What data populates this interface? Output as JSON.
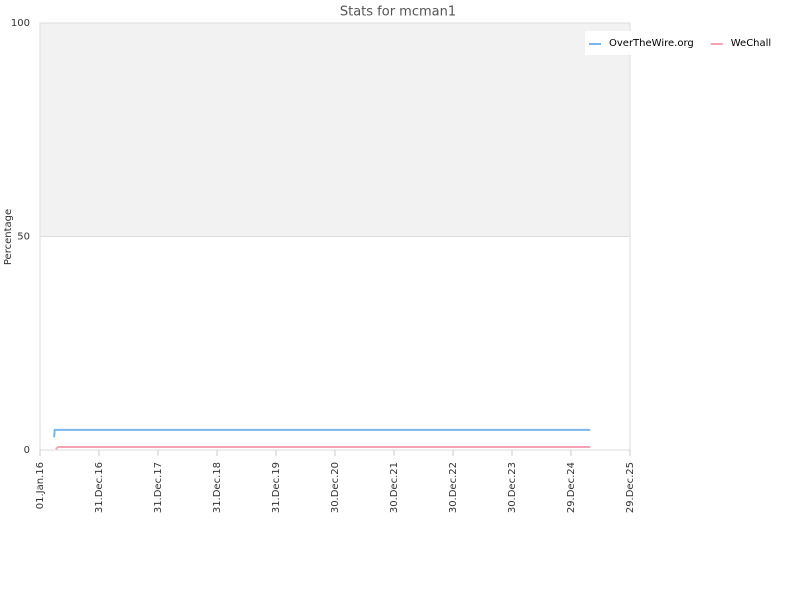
{
  "chart_data": {
    "type": "line",
    "title": "Stats for mcman1",
    "y_label": "Percentage",
    "series": [
      {
        "name": "OverTheWire.org",
        "color": "#7cb5ec",
        "x": [
          "2016-03-28",
          "2016-04-01",
          "2025-04-27"
        ],
        "values": [
          3,
          4.7,
          4.7
        ]
      },
      {
        "name": "WeChall",
        "color": "#f7a1b5",
        "x": [
          "2016-04-08",
          "2016-04-21",
          "2025-04-27"
        ],
        "values": [
          0.2,
          0.7,
          0.7
        ]
      }
    ],
    "xlim": [
      "2016-01-01",
      "2025-12-29"
    ],
    "xticks": [
      {
        "value": "2016-01-01",
        "label": "01.Jan.16"
      },
      {
        "value": "2016-12-31",
        "label": "31.Dec.16"
      },
      {
        "value": "2017-12-31",
        "label": "31.Dec.17"
      },
      {
        "value": "2018-12-31",
        "label": "31.Dec.18"
      },
      {
        "value": "2019-12-31",
        "label": "31.Dec.19"
      },
      {
        "value": "2020-12-30",
        "label": "30.Dec.20"
      },
      {
        "value": "2021-12-30",
        "label": "30.Dec.21"
      },
      {
        "value": "2022-12-30",
        "label": "30.Dec.22"
      },
      {
        "value": "2023-12-30",
        "label": "30.Dec.23"
      },
      {
        "value": "2024-12-29",
        "label": "29.Dec.24"
      },
      {
        "value": "2025-12-29",
        "label": "29.Dec.25"
      }
    ],
    "ylim": [
      0,
      100
    ],
    "yticks": [
      0,
      50,
      100
    ],
    "grid": true,
    "plot_bands": [
      {
        "from": 50,
        "to": 100,
        "color": "#f2f2f2"
      }
    ],
    "legend": "top-right"
  }
}
